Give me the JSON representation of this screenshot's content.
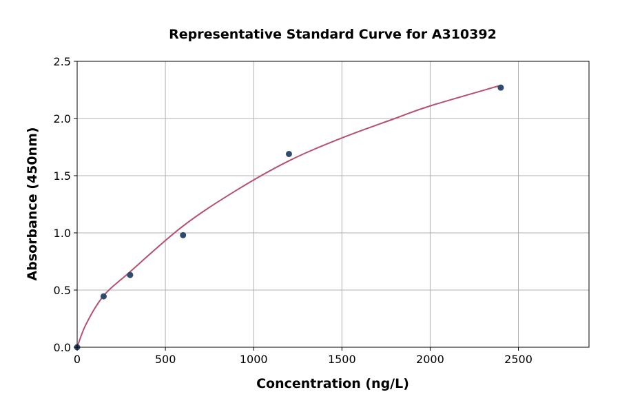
{
  "chart_data": {
    "type": "scatter",
    "title": "Representative Standard Curve for A310392",
    "xlabel": "Concentration (ng/L)",
    "ylabel": "Absorbance (450nm)",
    "xlim": [
      0,
      2900
    ],
    "ylim": [
      0,
      2.5
    ],
    "xticks": [
      0,
      500,
      1000,
      1500,
      2000,
      2500
    ],
    "yticks": [
      0.0,
      0.5,
      1.0,
      1.5,
      2.0,
      2.5
    ],
    "xtick_labels": [
      "0",
      "500",
      "1000",
      "1500",
      "2000",
      "2500"
    ],
    "ytick_labels": [
      "0.0",
      "0.5",
      "1.0",
      "1.5",
      "2.0",
      "2.5"
    ],
    "grid": true,
    "points": {
      "x": [
        0,
        150,
        300,
        600,
        1200,
        2400
      ],
      "y": [
        0.0,
        0.445,
        0.632,
        0.98,
        1.69,
        2.27
      ],
      "color": "#2e4a6e"
    },
    "fit_curve": {
      "x": [
        0,
        50,
        150,
        300,
        600,
        900,
        1200,
        1500,
        1800,
        2000,
        2400
      ],
      "y": [
        0.0,
        0.2,
        0.45,
        0.66,
        1.06,
        1.37,
        1.63,
        1.83,
        2.0,
        2.11,
        2.29
      ],
      "color": "#b5506e"
    }
  }
}
